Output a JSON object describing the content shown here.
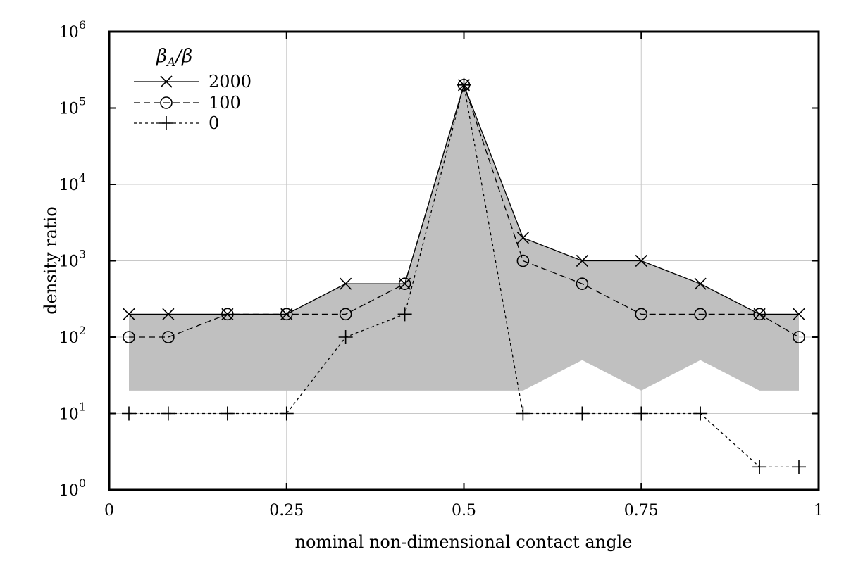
{
  "chart_data": {
    "type": "line",
    "title": "",
    "xlabel": "nominal non-dimensional contact angle",
    "ylabel": "density ratio",
    "xlim": [
      0,
      1
    ],
    "ylim": [
      1,
      1000000
    ],
    "yscale": "log",
    "grid": true,
    "legend": {
      "title": "βA/β",
      "title_main": "β",
      "title_sub": "A",
      "title_rest": "/β",
      "position": "top-left"
    },
    "x_ticks": [
      {
        "value": 0,
        "label": "0"
      },
      {
        "value": 0.25,
        "label": "0.25"
      },
      {
        "value": 0.5,
        "label": "0.5"
      },
      {
        "value": 0.75,
        "label": "0.75"
      },
      {
        "value": 1,
        "label": "1"
      }
    ],
    "y_ticks": [
      {
        "value": 1,
        "base": "10",
        "exp": "0"
      },
      {
        "value": 10,
        "base": "10",
        "exp": "1"
      },
      {
        "value": 100,
        "base": "10",
        "exp": "2"
      },
      {
        "value": 1000,
        "base": "10",
        "exp": "3"
      },
      {
        "value": 10000,
        "base": "10",
        "exp": "4"
      },
      {
        "value": 100000,
        "base": "10",
        "exp": "5"
      },
      {
        "value": 1000000,
        "base": "10",
        "exp": "6"
      }
    ],
    "shaded_region": {
      "color": "#c0c0c0",
      "upper": [
        [
          0.0278,
          200
        ],
        [
          0.0833,
          200
        ],
        [
          0.1667,
          200
        ],
        [
          0.25,
          200
        ],
        [
          0.3333,
          500
        ],
        [
          0.4167,
          500
        ],
        [
          0.5,
          200000
        ],
        [
          0.5833,
          2000
        ],
        [
          0.6667,
          1000
        ],
        [
          0.75,
          1000
        ],
        [
          0.8333,
          500
        ],
        [
          0.9167,
          200
        ],
        [
          0.9722,
          200
        ]
      ],
      "lower": [
        [
          0.0278,
          20
        ],
        [
          0.5833,
          20
        ],
        [
          0.6667,
          50
        ],
        [
          0.75,
          20
        ],
        [
          0.8333,
          50
        ],
        [
          0.9167,
          20
        ],
        [
          0.9722,
          20
        ]
      ]
    },
    "series": [
      {
        "name": "2000",
        "marker": "x",
        "dash": "solid",
        "x": [
          0.0278,
          0.0833,
          0.1667,
          0.25,
          0.3333,
          0.4167,
          0.5,
          0.5833,
          0.6667,
          0.75,
          0.8333,
          0.9167,
          0.9722
        ],
        "y": [
          200,
          200,
          200,
          200,
          500,
          500,
          200000,
          2000,
          1000,
          1000,
          500,
          200,
          200
        ]
      },
      {
        "name": "100",
        "marker": "circle",
        "dash": "dashed",
        "x": [
          0.0278,
          0.0833,
          0.1667,
          0.25,
          0.3333,
          0.4167,
          0.5,
          0.5833,
          0.6667,
          0.75,
          0.8333,
          0.9167,
          0.9722
        ],
        "y": [
          100,
          100,
          200,
          200,
          200,
          500,
          200000,
          1000,
          500,
          200,
          200,
          200,
          100
        ]
      },
      {
        "name": "0",
        "marker": "plus",
        "dash": "dotted",
        "x": [
          0.0278,
          0.0833,
          0.1667,
          0.25,
          0.3333,
          0.4167,
          0.5,
          0.5833,
          0.6667,
          0.75,
          0.8333,
          0.9167,
          0.9722
        ],
        "y": [
          10,
          10,
          10,
          10,
          100,
          200,
          200000,
          10,
          10,
          10,
          10,
          2,
          2
        ]
      }
    ]
  }
}
